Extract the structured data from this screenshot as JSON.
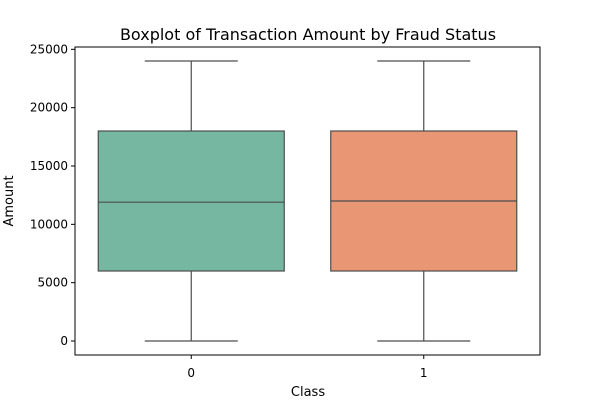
{
  "chart_data": {
    "type": "boxplot",
    "title": "Boxplot of Transaction Amount by Fraud Status",
    "xlabel": "Class",
    "ylabel": "Amount",
    "categories": [
      "0",
      "1"
    ],
    "ylim": [
      -1200,
      25200
    ],
    "yticks": [
      0,
      5000,
      10000,
      15000,
      20000,
      25000
    ],
    "ytick_labels": [
      "0",
      "5000",
      "10000",
      "15000",
      "20000",
      "25000"
    ],
    "grid": false,
    "boxes": [
      {
        "category": "0",
        "min": 0,
        "q1": 6000,
        "median": 11900,
        "q3": 18000,
        "max": 24000,
        "color": "#76b7a2"
      },
      {
        "category": "1",
        "min": 0,
        "q1": 6000,
        "median": 12000,
        "q3": 18000,
        "max": 24000,
        "color": "#e99675"
      }
    ]
  }
}
